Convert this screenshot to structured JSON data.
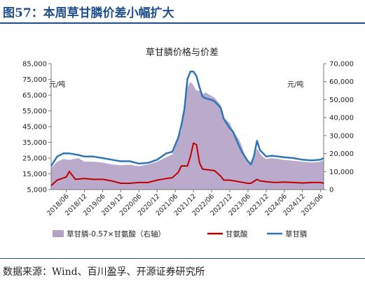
{
  "figure": {
    "title": "图57：本周草甘膦价差小幅扩大",
    "source": "数据来源：Wind、百川盈孚、开源证券研究所"
  },
  "chart_data": {
    "type": "line",
    "title": "草甘膦价格与价差",
    "left_axis": {
      "unit": "元/吨",
      "ylim": [
        5000,
        85000
      ],
      "ticks": [
        "5,000",
        "15,000",
        "25,000",
        "35,000",
        "45,000",
        "55,000",
        "65,000",
        "75,000",
        "85,000"
      ]
    },
    "right_axis": {
      "unit": "元/吨",
      "ylim": [
        0,
        70000
      ],
      "ticks": [
        "0",
        "10,000",
        "20,000",
        "30,000",
        "40,000",
        "50,000",
        "60,000",
        "70,000"
      ]
    },
    "x_tick_labels": [
      "2018/06",
      "2018/12",
      "2019/06",
      "2019/12",
      "2020/06",
      "2020/12",
      "2021/06",
      "2021/12",
      "2022/06",
      "2022/12",
      "2023/06",
      "2023/12",
      "2024/06",
      "2024/12",
      "2025/06"
    ],
    "x_range": [
      "2018/01",
      "2025/07"
    ],
    "legend": [
      "草甘膦-0.57×甘氨酸（右轴）",
      "甘氨酸",
      "草甘膦"
    ],
    "legend_placement": "bottom",
    "colors": {
      "spread": "#b3a2c7",
      "glycine": "#c00000",
      "glyphosate": "#2e75b6"
    },
    "series": [
      {
        "name": "草甘膦-0.57×甘氨酸（右轴）",
        "axis": "right",
        "type": "area",
        "x": [
          "2018/01",
          "2018/03",
          "2018/05",
          "2018/07",
          "2018/10",
          "2018/12",
          "2019/03",
          "2019/06",
          "2019/09",
          "2019/12",
          "2020/03",
          "2020/06",
          "2020/09",
          "2020/12",
          "2021/03",
          "2021/05",
          "2021/07",
          "2021/08",
          "2021/09",
          "2021/10",
          "2021/11",
          "2021/12",
          "2022/01",
          "2022/02",
          "2022/03",
          "2022/04",
          "2022/06",
          "2022/07",
          "2022/09",
          "2022/10",
          "2022/12",
          "2023/01",
          "2023/03",
          "2023/04",
          "2023/05",
          "2023/06",
          "2023/07",
          "2023/08",
          "2023/09",
          "2023/10",
          "2023/11",
          "2023/12",
          "2024/02",
          "2024/04",
          "2024/06",
          "2024/09",
          "2024/12",
          "2025/03",
          "2025/06",
          "2025/07"
        ],
        "values": [
          12000,
          15500,
          17000,
          16500,
          17500,
          15500,
          15500,
          15000,
          14000,
          13500,
          13800,
          13000,
          14000,
          15500,
          18000,
          19500,
          28000,
          33000,
          45000,
          57000,
          60000,
          58000,
          55000,
          55000,
          53000,
          54000,
          52000,
          51000,
          47000,
          40000,
          37000,
          33000,
          28000,
          24000,
          19000,
          15500,
          14000,
          18000,
          23000,
          20000,
          18000,
          17000,
          17500,
          17000,
          16500,
          16000,
          15500,
          15000,
          15500,
          16500
        ]
      },
      {
        "name": "甘氨酸",
        "axis": "left",
        "x": [
          "2018/01",
          "2018/03",
          "2018/06",
          "2018/07",
          "2018/09",
          "2018/12",
          "2019/03",
          "2019/06",
          "2019/09",
          "2019/12",
          "2020/03",
          "2020/06",
          "2020/09",
          "2020/12",
          "2021/03",
          "2021/05",
          "2021/07",
          "2021/08",
          "2021/10",
          "2021/11",
          "2021/12",
          "2022/01",
          "2022/02",
          "2022/03",
          "2022/05",
          "2022/07",
          "2022/09",
          "2022/10",
          "2022/12",
          "2023/03",
          "2023/06",
          "2023/07",
          "2023/09",
          "2023/10",
          "2023/12",
          "2024/03",
          "2024/06",
          "2024/09",
          "2024/12",
          "2025/03",
          "2025/06",
          "2025/07"
        ],
        "values": [
          7500,
          11000,
          13000,
          16500,
          11500,
          12000,
          11500,
          11500,
          10500,
          9000,
          9000,
          9500,
          9500,
          11000,
          12000,
          12500,
          16000,
          20000,
          20000,
          26000,
          34500,
          33500,
          22000,
          18000,
          17500,
          17000,
          13500,
          11000,
          11000,
          10000,
          9000,
          9000,
          11500,
          10500,
          10000,
          9500,
          9800,
          9500,
          9200,
          9500,
          9500,
          9000
        ]
      },
      {
        "name": "草甘膦",
        "axis": "left",
        "x": [
          "2018/01",
          "2018/03",
          "2018/05",
          "2018/07",
          "2018/10",
          "2018/12",
          "2019/03",
          "2019/06",
          "2019/09",
          "2019/12",
          "2020/03",
          "2020/06",
          "2020/09",
          "2020/12",
          "2021/03",
          "2021/05",
          "2021/07",
          "2021/08",
          "2021/09",
          "2021/10",
          "2021/11",
          "2021/12",
          "2022/01",
          "2022/02",
          "2022/03",
          "2022/04",
          "2022/06",
          "2022/07",
          "2022/09",
          "2022/10",
          "2022/12",
          "2023/01",
          "2023/03",
          "2023/04",
          "2023/05",
          "2023/06",
          "2023/07",
          "2023/08",
          "2023/09",
          "2023/10",
          "2023/11",
          "2023/12",
          "2024/02",
          "2024/04",
          "2024/06",
          "2024/09",
          "2024/12",
          "2025/03",
          "2025/06",
          "2025/07"
        ],
        "values": [
          20000,
          26000,
          28000,
          28000,
          27000,
          26000,
          26000,
          25000,
          24000,
          23000,
          23000,
          21500,
          22000,
          24000,
          28000,
          29000,
          38000,
          46000,
          56000,
          75000,
          80000,
          80000,
          77000,
          70000,
          64000,
          63000,
          62000,
          61000,
          57000,
          50000,
          44000,
          42000,
          33000,
          29000,
          26000,
          23000,
          21000,
          26500,
          36000,
          30000,
          28000,
          26000,
          26500,
          26000,
          25500,
          25000,
          24000,
          23500,
          24000,
          25000
        ]
      }
    ]
  }
}
